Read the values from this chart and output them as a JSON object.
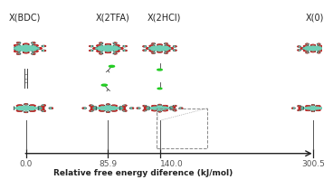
{
  "axis_label": "Relative free energy diference (kJ/mol)",
  "energy_values": [
    0.0,
    85.9,
    140.0,
    300.5
  ],
  "energy_labels": [
    "0.0",
    "85.9",
    "140.0",
    "300.5"
  ],
  "structure_labels": [
    "X(BDC)",
    "X(2TFA)",
    "X(2HCl)",
    "X(0)"
  ],
  "arrow_color": "#222222",
  "tick_color": "#222222",
  "label_color": "#555555",
  "background_color": "#ffffff",
  "axis_fontsize": 6.5,
  "energy_label_fontsize": 6.5,
  "structure_label_fontsize": 7.0,
  "cluster_color_teal": "#6ecfb5",
  "cluster_color_dark": "#1a1a1a",
  "cluster_color_red": "#cc2222",
  "cluster_color_green": "#22cc22"
}
